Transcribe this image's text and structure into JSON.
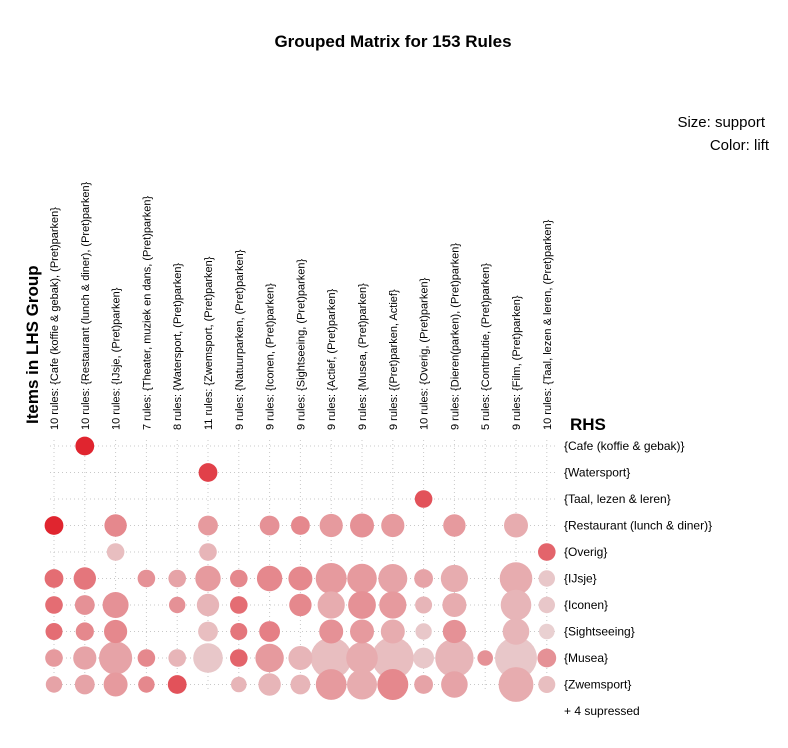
{
  "chart_data": {
    "type": "scatter",
    "title": "Grouped Matrix for 153 Rules",
    "legend": {
      "size_label": "Size: support",
      "color_label": "Color: lift",
      "placement": "top-right"
    },
    "xlabel": "Items in LHS Group",
    "ylabel": "RHS",
    "grid": true,
    "lhs_groups": [
      "10 rules: {Cafe (koffie & gebak), (Pret)parken}",
      "10 rules: {Restaurant (lunch & diner), (Pret)parken}",
      "10 rules: {IJsje, (Pret)parken}",
      "7 rules: {Theater, muziek en dans, (Pret)parken}",
      "8 rules: {Watersport, (Pret)parken}",
      "11 rules: {Zwemsport, (Pret)parken}",
      "9 rules: {Natuurparken, (Pret)parken}",
      "9 rules: {Iconen, (Pret)parken}",
      "9 rules: {Sightseeing, (Pret)parken}",
      "9 rules: {Actief, (Pret)parken}",
      "9 rules: {Musea, (Pret)parken}",
      "9 rules: {(Pret)parken, Actief}",
      "10 rules: {Overig, (Pret)parken}",
      "9 rules: {Dieren(parken), (Pret)parken}",
      "5 rules: {Contributie, (Pret)parken}",
      "9 rules: {Film, (Pret)parken}",
      "10 rules: {Taal, lezen & leren, (Pret)parken}"
    ],
    "rhs_items": [
      "{Cafe (koffie & gebak)}",
      "{Watersport}",
      "{Taal, lezen & leren}",
      "{Restaurant (lunch & diner)}",
      "{Overig}",
      "{IJsje}",
      "{Iconen}",
      "{Sightseeing}",
      "{Musea}",
      "{Zwemsport}"
    ],
    "suppressed_note": "+ 4 supressed",
    "color_scale": {
      "low": "#e9d9da",
      "high": "#e0252f"
    },
    "points": [
      {
        "lhs": 1,
        "rhs": 0,
        "support": 0.1,
        "lift": 1.0
      },
      {
        "lhs": 5,
        "rhs": 1,
        "support": 0.1,
        "lift": 0.85
      },
      {
        "lhs": 12,
        "rhs": 2,
        "support": 0.08,
        "lift": 0.75
      },
      {
        "lhs": 0,
        "rhs": 3,
        "support": 0.1,
        "lift": 1.0
      },
      {
        "lhs": 2,
        "rhs": 3,
        "support": 0.18,
        "lift": 0.45
      },
      {
        "lhs": 5,
        "rhs": 3,
        "support": 0.12,
        "lift": 0.35
      },
      {
        "lhs": 7,
        "rhs": 3,
        "support": 0.12,
        "lift": 0.4
      },
      {
        "lhs": 8,
        "rhs": 3,
        "support": 0.1,
        "lift": 0.45
      },
      {
        "lhs": 9,
        "rhs": 3,
        "support": 0.2,
        "lift": 0.35
      },
      {
        "lhs": 10,
        "rhs": 3,
        "support": 0.22,
        "lift": 0.4
      },
      {
        "lhs": 11,
        "rhs": 3,
        "support": 0.2,
        "lift": 0.35
      },
      {
        "lhs": 13,
        "rhs": 3,
        "support": 0.18,
        "lift": 0.35
      },
      {
        "lhs": 15,
        "rhs": 3,
        "support": 0.22,
        "lift": 0.25
      },
      {
        "lhs": 2,
        "rhs": 4,
        "support": 0.08,
        "lift": 0.15
      },
      {
        "lhs": 5,
        "rhs": 4,
        "support": 0.08,
        "lift": 0.2
      },
      {
        "lhs": 16,
        "rhs": 4,
        "support": 0.08,
        "lift": 0.65
      },
      {
        "lhs": 0,
        "rhs": 5,
        "support": 0.1,
        "lift": 0.6
      },
      {
        "lhs": 1,
        "rhs": 5,
        "support": 0.18,
        "lift": 0.55
      },
      {
        "lhs": 3,
        "rhs": 5,
        "support": 0.08,
        "lift": 0.4
      },
      {
        "lhs": 4,
        "rhs": 5,
        "support": 0.08,
        "lift": 0.3
      },
      {
        "lhs": 5,
        "rhs": 5,
        "support": 0.26,
        "lift": 0.35
      },
      {
        "lhs": 6,
        "rhs": 5,
        "support": 0.08,
        "lift": 0.45
      },
      {
        "lhs": 7,
        "rhs": 5,
        "support": 0.26,
        "lift": 0.45
      },
      {
        "lhs": 8,
        "rhs": 5,
        "support": 0.22,
        "lift": 0.45
      },
      {
        "lhs": 9,
        "rhs": 5,
        "support": 0.46,
        "lift": 0.35
      },
      {
        "lhs": 10,
        "rhs": 5,
        "support": 0.4,
        "lift": 0.35
      },
      {
        "lhs": 11,
        "rhs": 5,
        "support": 0.38,
        "lift": 0.3
      },
      {
        "lhs": 12,
        "rhs": 5,
        "support": 0.1,
        "lift": 0.3
      },
      {
        "lhs": 13,
        "rhs": 5,
        "support": 0.32,
        "lift": 0.25
      },
      {
        "lhs": 15,
        "rhs": 5,
        "support": 0.52,
        "lift": 0.25
      },
      {
        "lhs": 16,
        "rhs": 5,
        "support": 0.06,
        "lift": 0.1
      },
      {
        "lhs": 0,
        "rhs": 6,
        "support": 0.08,
        "lift": 0.6
      },
      {
        "lhs": 1,
        "rhs": 6,
        "support": 0.12,
        "lift": 0.4
      },
      {
        "lhs": 2,
        "rhs": 6,
        "support": 0.28,
        "lift": 0.4
      },
      {
        "lhs": 4,
        "rhs": 6,
        "support": 0.06,
        "lift": 0.4
      },
      {
        "lhs": 5,
        "rhs": 6,
        "support": 0.18,
        "lift": 0.2
      },
      {
        "lhs": 6,
        "rhs": 6,
        "support": 0.08,
        "lift": 0.6
      },
      {
        "lhs": 8,
        "rhs": 6,
        "support": 0.18,
        "lift": 0.45
      },
      {
        "lhs": 9,
        "rhs": 6,
        "support": 0.32,
        "lift": 0.25
      },
      {
        "lhs": 10,
        "rhs": 6,
        "support": 0.34,
        "lift": 0.4
      },
      {
        "lhs": 11,
        "rhs": 6,
        "support": 0.32,
        "lift": 0.35
      },
      {
        "lhs": 12,
        "rhs": 6,
        "support": 0.07,
        "lift": 0.2
      },
      {
        "lhs": 13,
        "rhs": 6,
        "support": 0.22,
        "lift": 0.25
      },
      {
        "lhs": 15,
        "rhs": 6,
        "support": 0.44,
        "lift": 0.2
      },
      {
        "lhs": 16,
        "rhs": 6,
        "support": 0.06,
        "lift": 0.1
      },
      {
        "lhs": 0,
        "rhs": 7,
        "support": 0.07,
        "lift": 0.6
      },
      {
        "lhs": 1,
        "rhs": 7,
        "support": 0.09,
        "lift": 0.45
      },
      {
        "lhs": 2,
        "rhs": 7,
        "support": 0.2,
        "lift": 0.45
      },
      {
        "lhs": 5,
        "rhs": 7,
        "support": 0.12,
        "lift": 0.15
      },
      {
        "lhs": 6,
        "rhs": 7,
        "support": 0.07,
        "lift": 0.55
      },
      {
        "lhs": 7,
        "rhs": 7,
        "support": 0.14,
        "lift": 0.5
      },
      {
        "lhs": 9,
        "rhs": 7,
        "support": 0.22,
        "lift": 0.4
      },
      {
        "lhs": 10,
        "rhs": 7,
        "support": 0.22,
        "lift": 0.35
      },
      {
        "lhs": 11,
        "rhs": 7,
        "support": 0.22,
        "lift": 0.25
      },
      {
        "lhs": 12,
        "rhs": 7,
        "support": 0.06,
        "lift": 0.1
      },
      {
        "lhs": 13,
        "rhs": 7,
        "support": 0.2,
        "lift": 0.4
      },
      {
        "lhs": 15,
        "rhs": 7,
        "support": 0.3,
        "lift": 0.2
      },
      {
        "lhs": 16,
        "rhs": 7,
        "support": 0.05,
        "lift": 0.05
      },
      {
        "lhs": 0,
        "rhs": 8,
        "support": 0.08,
        "lift": 0.35
      },
      {
        "lhs": 1,
        "rhs": 8,
        "support": 0.2,
        "lift": 0.3
      },
      {
        "lhs": 2,
        "rhs": 8,
        "support": 0.55,
        "lift": 0.3
      },
      {
        "lhs": 3,
        "rhs": 8,
        "support": 0.08,
        "lift": 0.45
      },
      {
        "lhs": 4,
        "rhs": 8,
        "support": 0.08,
        "lift": 0.2
      },
      {
        "lhs": 5,
        "rhs": 8,
        "support": 0.4,
        "lift": 0.1
      },
      {
        "lhs": 6,
        "rhs": 8,
        "support": 0.08,
        "lift": 0.65
      },
      {
        "lhs": 7,
        "rhs": 8,
        "support": 0.36,
        "lift": 0.35
      },
      {
        "lhs": 8,
        "rhs": 8,
        "support": 0.22,
        "lift": 0.2
      },
      {
        "lhs": 9,
        "rhs": 8,
        "support": 0.95,
        "lift": 0.15
      },
      {
        "lhs": 10,
        "rhs": 8,
        "support": 0.48,
        "lift": 0.25
      },
      {
        "lhs": 11,
        "rhs": 8,
        "support": 1.0,
        "lift": 0.15
      },
      {
        "lhs": 12,
        "rhs": 8,
        "support": 0.14,
        "lift": 0.1
      },
      {
        "lhs": 13,
        "rhs": 8,
        "support": 0.8,
        "lift": 0.2
      },
      {
        "lhs": 14,
        "rhs": 8,
        "support": 0.05,
        "lift": 0.4
      },
      {
        "lhs": 15,
        "rhs": 8,
        "support": 1.0,
        "lift": 0.1
      },
      {
        "lhs": 16,
        "rhs": 8,
        "support": 0.1,
        "lift": 0.4
      },
      {
        "lhs": 0,
        "rhs": 9,
        "support": 0.06,
        "lift": 0.3
      },
      {
        "lhs": 1,
        "rhs": 9,
        "support": 0.12,
        "lift": 0.3
      },
      {
        "lhs": 2,
        "rhs": 9,
        "support": 0.22,
        "lift": 0.35
      },
      {
        "lhs": 3,
        "rhs": 9,
        "support": 0.06,
        "lift": 0.45
      },
      {
        "lhs": 4,
        "rhs": 9,
        "support": 0.1,
        "lift": 0.75
      },
      {
        "lhs": 6,
        "rhs": 9,
        "support": 0.05,
        "lift": 0.2
      },
      {
        "lhs": 7,
        "rhs": 9,
        "support": 0.18,
        "lift": 0.2
      },
      {
        "lhs": 8,
        "rhs": 9,
        "support": 0.12,
        "lift": 0.2
      },
      {
        "lhs": 9,
        "rhs": 9,
        "support": 0.45,
        "lift": 0.35
      },
      {
        "lhs": 10,
        "rhs": 9,
        "support": 0.42,
        "lift": 0.25
      },
      {
        "lhs": 11,
        "rhs": 9,
        "support": 0.46,
        "lift": 0.45
      },
      {
        "lhs": 12,
        "rhs": 9,
        "support": 0.1,
        "lift": 0.3
      },
      {
        "lhs": 13,
        "rhs": 9,
        "support": 0.3,
        "lift": 0.3
      },
      {
        "lhs": 15,
        "rhs": 9,
        "support": 0.62,
        "lift": 0.25
      },
      {
        "lhs": 16,
        "rhs": 9,
        "support": 0.07,
        "lift": 0.15
      }
    ]
  }
}
